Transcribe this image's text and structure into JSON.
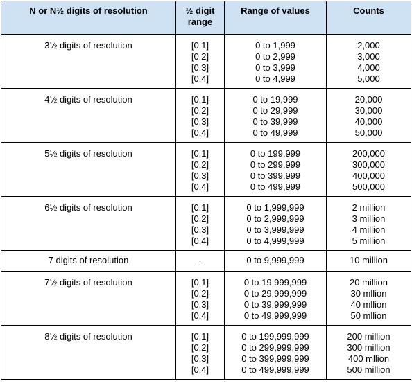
{
  "headers": [
    "N or N½ digits of resolution",
    "½ digit range",
    "Range of values",
    "Counts"
  ],
  "rows": [
    {
      "label": "3½ digits of resolution",
      "digit_range": [
        "[0,1]",
        "[0,2]",
        "[0,3]",
        "[0,4]"
      ],
      "values": [
        "0 to 1,999",
        "0 to 2,999",
        "0 to 3,999",
        "0 to 4,999"
      ],
      "counts": [
        "2,000",
        "3,000",
        "4,000",
        "5,000"
      ]
    },
    {
      "label": "4½ digits of resolution",
      "digit_range": [
        "[0,1]",
        "[0,2]",
        "[0,3]",
        "[0,4]"
      ],
      "values": [
        "0 to 19,999",
        "0 to 29,999",
        "0 to 39,999",
        "0 to 49,999"
      ],
      "counts": [
        "20,000",
        "30,000",
        "40,000",
        "50,000"
      ]
    },
    {
      "label": "5½ digits of resolution",
      "digit_range": [
        "[0,1]",
        "[0,2]",
        "[0,3]",
        "[0,4]"
      ],
      "values": [
        "0 to 199,999",
        "0 to 299,999",
        "0 to 399,999",
        "0 to 499,999"
      ],
      "counts": [
        "200,000",
        "300,000",
        "400,000",
        "500,000"
      ]
    },
    {
      "label": "6½ digits of resolution",
      "digit_range": [
        "[0,1]",
        "[0,2]",
        "[0,3]",
        "[0,4]"
      ],
      "values": [
        "0 to 1,999,999",
        "0 to 2,999,999",
        "0 to 3,999,999",
        "0 to 4,999,999"
      ],
      "counts": [
        "2 million",
        "3 million",
        "4 million",
        "5 million"
      ]
    },
    {
      "label": "7 digits of resolution",
      "digit_range": [
        "-"
      ],
      "values": [
        "0 to 9,999,999"
      ],
      "counts": [
        "10 million"
      ]
    },
    {
      "label": "7½ digits of resolution",
      "digit_range": [
        "[0,1]",
        "[0,2]",
        "[0,3]",
        "[0,4]"
      ],
      "values": [
        "0 to 19,999,999",
        "0 to 29,999,999",
        "0 to 39,999,999",
        "0 to 49,999,999"
      ],
      "counts": [
        "20 million",
        "30 mllion",
        "40 mllion",
        "50 mllion"
      ]
    },
    {
      "label": "8½ digits of resolution",
      "digit_range": [
        "[0,1]",
        "[0,2]",
        "[0,3]",
        "[0,4]"
      ],
      "values": [
        "0 to 199,999,999",
        "0 to 299,999,999",
        "0 to 399,999,999",
        "0 to 499,999,999"
      ],
      "counts": [
        "200 million",
        "300 million",
        "400 mllion",
        "500 million"
      ]
    }
  ]
}
